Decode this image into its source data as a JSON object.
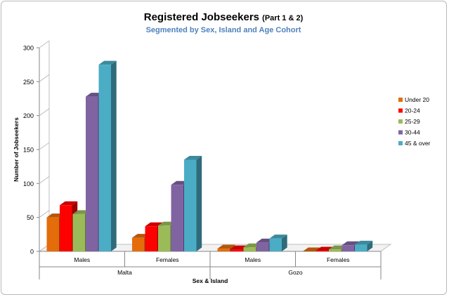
{
  "chart_data": {
    "type": "bar",
    "title": "Registered Jobseekers",
    "title_suffix": "(Part 1 & 2)",
    "subtitle": "Segmented by Sex, Island and Age Cohort",
    "xlabel": "Sex & Island",
    "ylabel": "Number of Jobseekers",
    "ylim": [
      0,
      300
    ],
    "yticks": [
      0,
      50,
      100,
      150,
      200,
      250,
      300
    ],
    "grid": false,
    "legend_position": "right",
    "categories": [
      "Males",
      "Females",
      "Males",
      "Females"
    ],
    "groups": [
      {
        "label": "Malta",
        "categories": [
          "Males",
          "Females"
        ]
      },
      {
        "label": "Gozo",
        "categories": [
          "Males",
          "Females"
        ]
      }
    ],
    "series": [
      {
        "name": "Under 20",
        "color": "#e46c0a",
        "values": [
          50,
          20,
          4,
          0
        ]
      },
      {
        "name": "20-24",
        "color": "#ff0000",
        "values": [
          68,
          37,
          3,
          1
        ]
      },
      {
        "name": "25-29",
        "color": "#9bbb59",
        "values": [
          55,
          38,
          6,
          3
        ]
      },
      {
        "name": "30-44",
        "color": "#8064a2",
        "values": [
          228,
          98,
          13,
          9
        ]
      },
      {
        "name": "45 & over",
        "color": "#4bacc6",
        "values": [
          275,
          135,
          19,
          10
        ]
      }
    ]
  }
}
